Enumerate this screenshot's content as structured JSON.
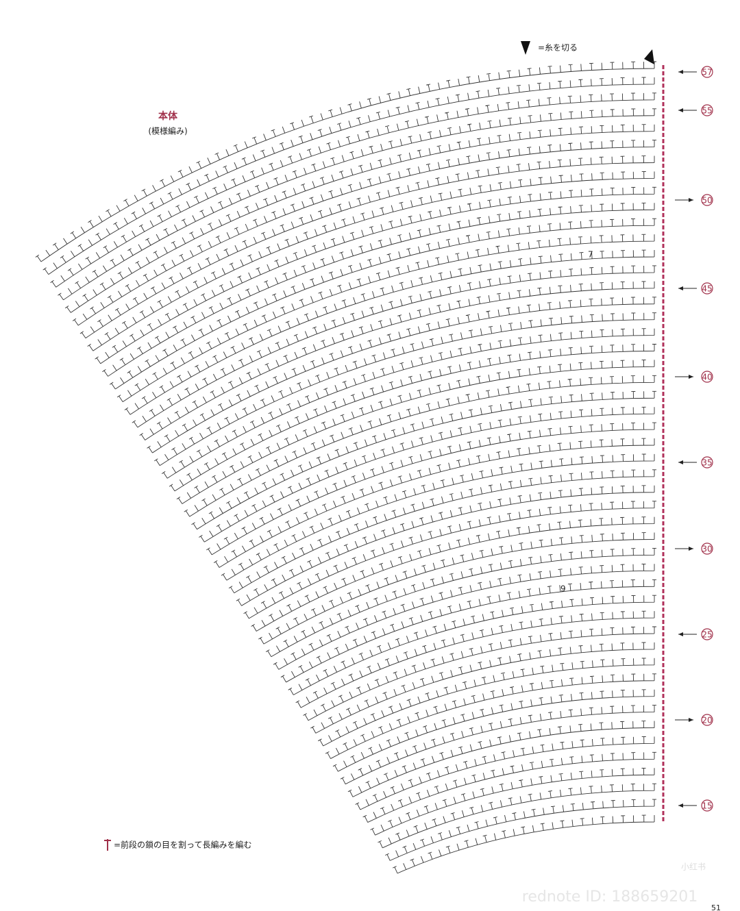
{
  "header": {
    "title": "本体",
    "subtitle": "(模様編み)"
  },
  "legend": [
    {
      "label": "=糸を切る"
    },
    {
      "label": "=前段の鎖の目を割って長編みを編む"
    }
  ],
  "row_labels": [
    "57",
    "55",
    "50",
    "45",
    "40",
    "35",
    "30",
    "25",
    "20",
    "15"
  ],
  "chart_notes": [
    "7",
    "9"
  ],
  "watermark": {
    "brand": "小红书",
    "id": "rednote ID: 188659201"
  },
  "page_number": "51"
}
